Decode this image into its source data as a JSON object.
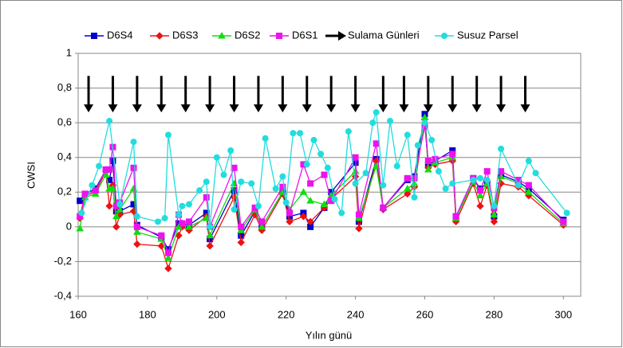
{
  "chart_data": {
    "type": "line",
    "x_label": "Yılın günü",
    "y_label": "CWSI",
    "xlim": [
      160,
      305
    ],
    "xticks": [
      160,
      180,
      200,
      220,
      240,
      260,
      280,
      300
    ],
    "ylim": [
      -0.4,
      1
    ],
    "yticks": [
      {
        "value": -0.4,
        "label": "-0,4"
      },
      {
        "value": -0.2,
        "label": "-0,2"
      },
      0,
      {
        "value": 0.2,
        "label": "0,2"
      },
      {
        "value": 0.4,
        "label": "0,4"
      },
      {
        "value": 0.6,
        "label": "0,6"
      },
      {
        "value": 0.8,
        "label": "0,8"
      },
      1
    ],
    "grid": true,
    "legend": "top",
    "series": [
      {
        "name": "D6S4",
        "color": "#0000cc",
        "marker": "square",
        "x": [
          160.5,
          162,
          165,
          168,
          169,
          170,
          171,
          172,
          176,
          177,
          184,
          186,
          189,
          190,
          192,
          197,
          198,
          205,
          207,
          211,
          213,
          219,
          221,
          225,
          227,
          231,
          233,
          240,
          241,
          246,
          248,
          255,
          257,
          260,
          261,
          263,
          268,
          269,
          274,
          276,
          278,
          280,
          282,
          287,
          290,
          300
        ],
        "values": [
          0.15,
          0.19,
          0.22,
          0.33,
          0.27,
          0.38,
          0.09,
          0.09,
          0.13,
          0.01,
          -0.06,
          -0.13,
          0.02,
          0.02,
          0.01,
          0.08,
          -0.07,
          0.21,
          -0.05,
          0.09,
          0.0,
          0.2,
          0.06,
          0.08,
          0.0,
          0.11,
          0.2,
          0.37,
          0.03,
          0.39,
          0.11,
          0.27,
          0.29,
          0.65,
          0.36,
          0.38,
          0.44,
          0.06,
          0.28,
          0.22,
          0.25,
          0.06,
          0.3,
          0.26,
          0.22,
          0.04
        ]
      },
      {
        "name": "D6S3",
        "color": "#ee1111",
        "marker": "diamond",
        "x": [
          160.5,
          162,
          165,
          168,
          169,
          170,
          171,
          172,
          176,
          177,
          184,
          186,
          189,
          190,
          192,
          197,
          198,
          205,
          207,
          211,
          213,
          219,
          221,
          225,
          227,
          231,
          233,
          240,
          241,
          246,
          248,
          255,
          257,
          260,
          261,
          263,
          268,
          269,
          274,
          276,
          278,
          280,
          282,
          287,
          290,
          300
        ],
        "values": [
          0.05,
          0.18,
          0.2,
          0.32,
          0.12,
          0.24,
          0.0,
          0.07,
          0.09,
          -0.1,
          -0.11,
          -0.24,
          -0.05,
          0.0,
          -0.02,
          0.06,
          -0.11,
          0.17,
          -0.09,
          0.07,
          -0.02,
          0.19,
          0.03,
          0.06,
          0.03,
          0.11,
          0.16,
          0.29,
          -0.01,
          0.38,
          0.1,
          0.19,
          0.23,
          0.62,
          0.34,
          0.36,
          0.38,
          0.03,
          0.25,
          0.12,
          0.24,
          0.03,
          0.25,
          0.23,
          0.18,
          0.01
        ]
      },
      {
        "name": "D6S2",
        "color": "#11dd11",
        "marker": "triangle",
        "x": [
          160.5,
          162,
          165,
          168,
          169,
          170,
          171,
          172,
          176,
          177,
          184,
          186,
          189,
          190,
          192,
          197,
          198,
          205,
          207,
          211,
          213,
          219,
          221,
          225,
          227,
          231,
          233,
          240,
          241,
          246,
          248,
          255,
          257,
          260,
          261,
          263,
          268,
          269,
          274,
          276,
          278,
          280,
          282,
          287,
          290,
          300
        ],
        "values": [
          -0.01,
          0.17,
          0.19,
          0.3,
          0.22,
          0.22,
          0.06,
          0.1,
          0.22,
          -0.03,
          -0.07,
          -0.18,
          0.0,
          0.02,
          0.0,
          0.05,
          -0.05,
          0.25,
          -0.02,
          0.1,
          0.0,
          0.2,
          0.1,
          0.2,
          0.15,
          0.13,
          0.18,
          0.32,
          0.05,
          0.35,
          0.11,
          0.22,
          0.25,
          0.63,
          0.33,
          0.37,
          0.4,
          0.05,
          0.26,
          0.18,
          0.25,
          0.07,
          0.29,
          0.25,
          0.2,
          0.02
        ]
      },
      {
        "name": "D6S1",
        "color": "#ee11ee",
        "marker": "square",
        "x": [
          160.5,
          162,
          165,
          168,
          169,
          170,
          171,
          172,
          176,
          177,
          184,
          186,
          189,
          190,
          192,
          197,
          198,
          205,
          207,
          211,
          213,
          219,
          221,
          225,
          227,
          231,
          233,
          240,
          241,
          246,
          248,
          255,
          257,
          260,
          261,
          263,
          268,
          269,
          274,
          276,
          278,
          280,
          282,
          287,
          290,
          300
        ],
        "values": [
          0.06,
          0.19,
          0.21,
          0.33,
          0.33,
          0.46,
          0.12,
          0.14,
          0.34,
          0.0,
          -0.05,
          -0.15,
          0.07,
          0.02,
          0.03,
          0.17,
          0.0,
          0.34,
          0.0,
          0.11,
          0.03,
          0.23,
          0.08,
          0.36,
          0.25,
          0.3,
          0.15,
          0.4,
          0.07,
          0.48,
          0.11,
          0.28,
          0.28,
          0.58,
          0.38,
          0.39,
          0.42,
          0.06,
          0.28,
          0.21,
          0.32,
          0.11,
          0.32,
          0.27,
          0.24,
          0.03
        ]
      },
      {
        "name": "Sulama Günleri",
        "color": "#000000",
        "marker": "arrow",
        "x": [
          163,
          170,
          177,
          184,
          191,
          198,
          205,
          212,
          219,
          226,
          233,
          240,
          248,
          254,
          261,
          268,
          275,
          282,
          289
        ]
      },
      {
        "name": "Susuz Parsel",
        "color": "#22dddd",
        "marker": "circle",
        "x": [
          161,
          164,
          166,
          169,
          172,
          176,
          177,
          183,
          185,
          186,
          189,
          190,
          192,
          195,
          197,
          198,
          200,
          202,
          204,
          205,
          207,
          210,
          212,
          214,
          217,
          219,
          220,
          222,
          224,
          226,
          228,
          230,
          232,
          234,
          236,
          238,
          240,
          243,
          245,
          246,
          248,
          250,
          252,
          255,
          257,
          258,
          260,
          262,
          264,
          266,
          268,
          274,
          276,
          278,
          280,
          282,
          287,
          290,
          292,
          301
        ],
        "values": [
          0.08,
          0.24,
          0.35,
          0.61,
          0.13,
          0.49,
          0.06,
          0.03,
          0.05,
          0.53,
          0.07,
          0.12,
          0.13,
          0.21,
          0.26,
          0.0,
          0.4,
          0.3,
          0.44,
          0.1,
          0.26,
          0.25,
          0.12,
          0.51,
          0.22,
          0.29,
          0.14,
          0.54,
          0.54,
          0.36,
          0.5,
          0.42,
          0.34,
          0.16,
          0.08,
          0.55,
          0.25,
          0.31,
          0.6,
          0.66,
          0.24,
          0.61,
          0.35,
          0.53,
          0.17,
          0.47,
          0.6,
          0.5,
          0.32,
          0.22,
          0.25,
          0.27,
          0.28,
          0.27,
          0.12,
          0.45,
          0.24,
          0.38,
          0.31,
          0.08
        ]
      }
    ]
  }
}
